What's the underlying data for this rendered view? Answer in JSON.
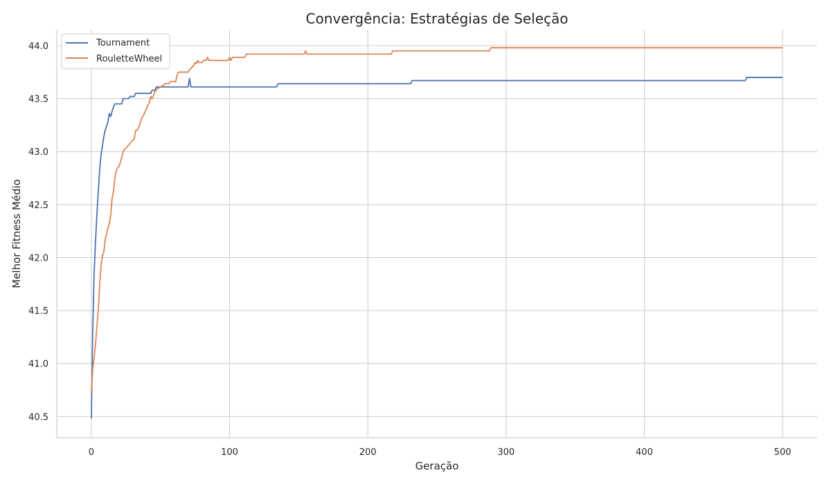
{
  "chart_data": {
    "type": "line",
    "title": "Convergência: Estratégias de Seleção",
    "xlabel": "Geração",
    "ylabel": "Melhor Fitness Médio",
    "xlim": [
      -25,
      525
    ],
    "ylim": [
      40.3,
      44.15
    ],
    "xticks": [
      0,
      100,
      200,
      300,
      400,
      500
    ],
    "yticks": [
      40.5,
      41.0,
      41.5,
      42.0,
      42.5,
      43.0,
      43.5,
      44.0
    ],
    "xtick_labels": [
      "0",
      "100",
      "200",
      "300",
      "400",
      "500"
    ],
    "ytick_labels": [
      "40.5",
      "41.0",
      "41.5",
      "42.0",
      "42.5",
      "43.0",
      "43.5",
      "44.0"
    ],
    "grid": true,
    "legend_position": "top-left",
    "series": [
      {
        "name": "Tournament",
        "color": "#4c72b0",
        "points": [
          [
            0,
            40.48
          ],
          [
            1,
            41.3
          ],
          [
            2,
            41.85
          ],
          [
            3,
            42.15
          ],
          [
            4,
            42.4
          ],
          [
            5,
            42.62
          ],
          [
            6,
            42.82
          ],
          [
            7,
            42.97
          ],
          [
            8,
            43.05
          ],
          [
            9,
            43.14
          ],
          [
            10,
            43.2
          ],
          [
            11,
            43.24
          ],
          [
            12,
            43.28
          ],
          [
            13,
            43.36
          ],
          [
            14,
            43.33
          ],
          [
            15,
            43.38
          ],
          [
            16,
            43.42
          ],
          [
            17,
            43.45
          ],
          [
            22,
            43.45
          ],
          [
            23,
            43.5
          ],
          [
            27,
            43.5
          ],
          [
            28,
            43.52
          ],
          [
            31,
            43.52
          ],
          [
            32,
            43.55
          ],
          [
            43,
            43.55
          ],
          [
            44,
            43.58
          ],
          [
            46,
            43.58
          ],
          [
            47,
            43.61
          ],
          [
            70,
            43.61
          ],
          [
            71,
            43.69
          ],
          [
            72,
            43.61
          ],
          [
            134,
            43.61
          ],
          [
            135,
            43.64
          ],
          [
            231,
            43.64
          ],
          [
            232,
            43.67
          ],
          [
            473,
            43.67
          ],
          [
            474,
            43.7
          ],
          [
            500,
            43.7
          ]
        ]
      },
      {
        "name": "RouletteWheel",
        "color": "#dd8452",
        "points": [
          [
            0,
            40.72
          ],
          [
            1,
            40.95
          ],
          [
            2,
            41.05
          ],
          [
            3,
            41.18
          ],
          [
            4,
            41.35
          ],
          [
            5,
            41.5
          ],
          [
            6,
            41.75
          ],
          [
            7,
            41.92
          ],
          [
            8,
            42.02
          ],
          [
            9,
            42.05
          ],
          [
            10,
            42.17
          ],
          [
            11,
            42.22
          ],
          [
            12,
            42.28
          ],
          [
            13,
            42.32
          ],
          [
            14,
            42.4
          ],
          [
            15,
            42.56
          ],
          [
            16,
            42.62
          ],
          [
            17,
            42.75
          ],
          [
            18,
            42.82
          ],
          [
            19,
            42.85
          ],
          [
            20,
            42.86
          ],
          [
            21,
            42.9
          ],
          [
            22,
            42.95
          ],
          [
            23,
            43.0
          ],
          [
            24,
            43.02
          ],
          [
            25,
            43.03
          ],
          [
            26,
            43.05
          ],
          [
            27,
            43.06
          ],
          [
            28,
            43.08
          ],
          [
            29,
            43.09
          ],
          [
            30,
            43.11
          ],
          [
            31,
            43.12
          ],
          [
            32,
            43.2
          ],
          [
            33,
            43.2
          ],
          [
            34,
            43.22
          ],
          [
            35,
            43.26
          ],
          [
            36,
            43.3
          ],
          [
            37,
            43.33
          ],
          [
            38,
            43.35
          ],
          [
            39,
            43.38
          ],
          [
            40,
            43.41
          ],
          [
            41,
            43.44
          ],
          [
            42,
            43.46
          ],
          [
            43,
            43.52
          ],
          [
            44,
            43.5
          ],
          [
            45,
            43.53
          ],
          [
            46,
            43.57
          ],
          [
            47,
            43.58
          ],
          [
            48,
            43.6
          ],
          [
            49,
            43.6
          ],
          [
            51,
            43.62
          ],
          [
            52,
            43.62
          ],
          [
            53,
            43.64
          ],
          [
            56,
            43.64
          ],
          [
            57,
            43.66
          ],
          [
            61,
            43.66
          ],
          [
            62,
            43.72
          ],
          [
            63,
            43.75
          ],
          [
            70,
            43.75
          ],
          [
            71,
            43.77
          ],
          [
            73,
            43.8
          ],
          [
            74,
            43.81
          ],
          [
            75,
            43.84
          ],
          [
            76,
            43.83
          ],
          [
            77,
            43.86
          ],
          [
            78,
            43.84
          ],
          [
            80,
            43.84
          ],
          [
            81,
            43.86
          ],
          [
            83,
            43.86
          ],
          [
            84,
            43.89
          ],
          [
            85,
            43.86
          ],
          [
            99,
            43.86
          ],
          [
            100,
            43.89
          ],
          [
            101,
            43.86
          ],
          [
            102,
            43.89
          ],
          [
            111,
            43.89
          ],
          [
            112,
            43.92
          ],
          [
            154,
            43.92
          ],
          [
            155,
            43.95
          ],
          [
            156,
            43.92
          ],
          [
            217,
            43.92
          ],
          [
            218,
            43.95
          ],
          [
            288,
            43.95
          ],
          [
            289,
            43.98
          ],
          [
            500,
            43.98
          ]
        ]
      }
    ]
  }
}
